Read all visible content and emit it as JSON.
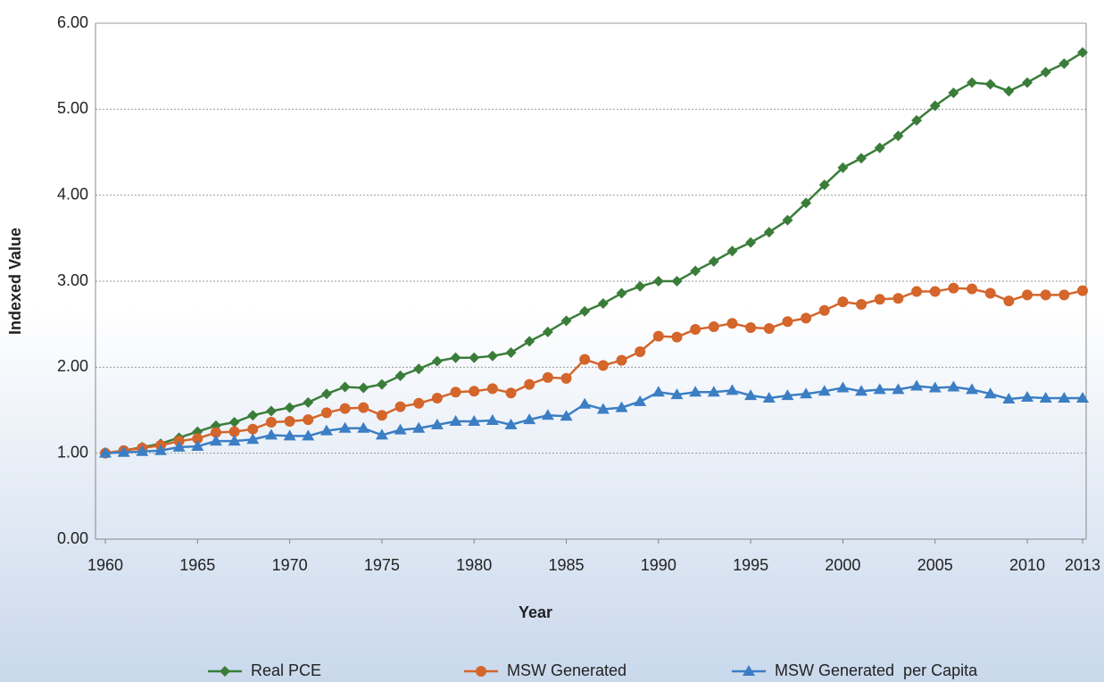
{
  "chart_data": {
    "type": "line",
    "x_label": "Year",
    "y_label": "Indexed Value",
    "x": [
      1960,
      1961,
      1962,
      1963,
      1964,
      1965,
      1966,
      1967,
      1968,
      1969,
      1970,
      1971,
      1972,
      1973,
      1974,
      1975,
      1976,
      1977,
      1978,
      1979,
      1980,
      1981,
      1982,
      1983,
      1984,
      1985,
      1986,
      1987,
      1988,
      1989,
      1990,
      1991,
      1992,
      1993,
      1994,
      1995,
      1996,
      1997,
      1998,
      1999,
      2000,
      2001,
      2002,
      2003,
      2004,
      2005,
      2006,
      2007,
      2008,
      2009,
      2010,
      2011,
      2012,
      2013
    ],
    "series": [
      {
        "name": "Real PCE",
        "color": "#3a7d3a",
        "marker": "diamond",
        "values": [
          1.0,
          1.03,
          1.07,
          1.11,
          1.18,
          1.25,
          1.32,
          1.36,
          1.44,
          1.49,
          1.53,
          1.59,
          1.69,
          1.77,
          1.76,
          1.8,
          1.9,
          1.98,
          2.07,
          2.11,
          2.11,
          2.13,
          2.17,
          2.3,
          2.41,
          2.54,
          2.65,
          2.74,
          2.86,
          2.94,
          3.0,
          3.0,
          3.12,
          3.23,
          3.35,
          3.45,
          3.57,
          3.71,
          3.91,
          4.12,
          4.32,
          4.43,
          4.55,
          4.69,
          4.87,
          5.04,
          5.19,
          5.31,
          5.29,
          5.21,
          5.31,
          5.43,
          5.53,
          5.66
        ]
      },
      {
        "name": "MSW Generated",
        "color": "#d4652b",
        "marker": "circle",
        "values": [
          1.0,
          1.03,
          1.06,
          1.09,
          1.14,
          1.17,
          1.24,
          1.25,
          1.28,
          1.36,
          1.37,
          1.39,
          1.47,
          1.52,
          1.53,
          1.44,
          1.54,
          1.58,
          1.64,
          1.71,
          1.72,
          1.75,
          1.7,
          1.8,
          1.88,
          1.87,
          2.09,
          2.02,
          2.08,
          2.18,
          2.36,
          2.35,
          2.44,
          2.47,
          2.51,
          2.46,
          2.45,
          2.53,
          2.57,
          2.66,
          2.76,
          2.73,
          2.79,
          2.8,
          2.88,
          2.88,
          2.92,
          2.91,
          2.86,
          2.77,
          2.84,
          2.84,
          2.84,
          2.89
        ]
      },
      {
        "name": "MSW Generated  per Capita",
        "color": "#3b7ec4",
        "marker": "triangle",
        "values": [
          1.0,
          1.01,
          1.02,
          1.03,
          1.07,
          1.08,
          1.14,
          1.14,
          1.16,
          1.21,
          1.2,
          1.2,
          1.26,
          1.29,
          1.29,
          1.21,
          1.27,
          1.29,
          1.33,
          1.37,
          1.37,
          1.38,
          1.33,
          1.39,
          1.44,
          1.43,
          1.57,
          1.51,
          1.53,
          1.6,
          1.71,
          1.68,
          1.71,
          1.71,
          1.73,
          1.67,
          1.64,
          1.67,
          1.69,
          1.72,
          1.76,
          1.72,
          1.74,
          1.74,
          1.78,
          1.76,
          1.77,
          1.74,
          1.69,
          1.63,
          1.65,
          1.64,
          1.64,
          1.64
        ]
      }
    ],
    "xlim": [
      1960,
      2013
    ],
    "xticks": [
      1960,
      1965,
      1970,
      1975,
      1980,
      1985,
      1990,
      1995,
      2000,
      2005,
      2010,
      2013
    ],
    "ylim": [
      0,
      6
    ],
    "yticks": [
      {
        "value": 0,
        "label": "0.00"
      },
      {
        "value": 1,
        "label": "1.00"
      },
      {
        "value": 2,
        "label": "2.00"
      },
      {
        "value": 3,
        "label": "3.00"
      },
      {
        "value": 4,
        "label": "4.00"
      },
      {
        "value": 5,
        "label": "5.00"
      },
      {
        "value": 6,
        "label": "6.00"
      }
    ],
    "grid": true,
    "legend": "bottom"
  }
}
